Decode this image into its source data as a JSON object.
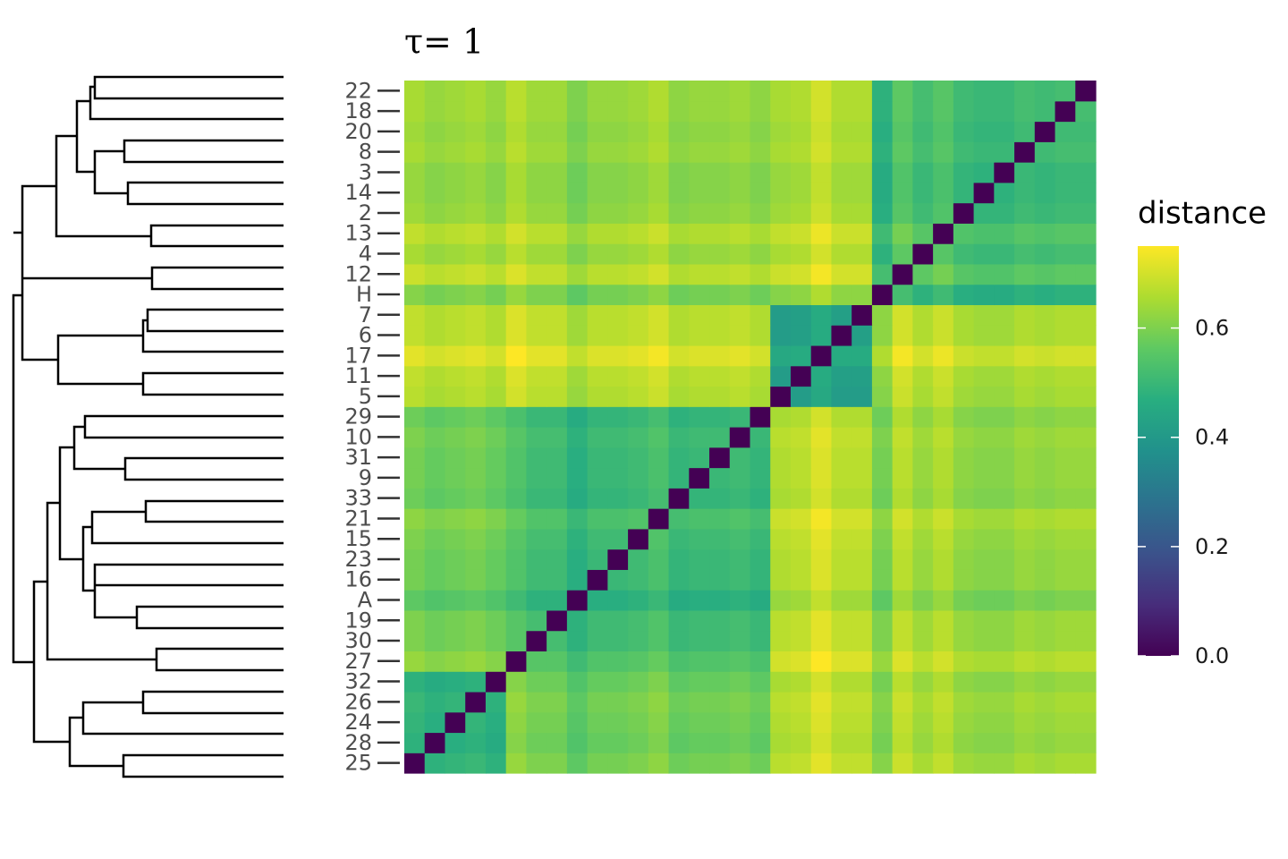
{
  "chart_data": {
    "type": "heatmap",
    "title": "τ= 1",
    "colorbar_title": "distance",
    "colormap": "viridis",
    "zlim": [
      0,
      0.75
    ],
    "zticks": [
      {
        "value": 0,
        "label": "0.0"
      },
      0.2,
      0.4,
      0.6
    ],
    "categories": [
      "25",
      "28",
      "24",
      "26",
      "32",
      "27",
      "30",
      "19",
      "A",
      "16",
      "23",
      "15",
      "21",
      "33",
      "9",
      "31",
      "10",
      "29",
      "5",
      "11",
      "17",
      "6",
      "7",
      "H",
      "12",
      "4",
      "13",
      "2",
      "14",
      "3",
      "8",
      "20",
      "18",
      "22"
    ],
    "values": [
      [
        0,
        0.48,
        0.49,
        0.5,
        0.48,
        0.63,
        0.6,
        0.6,
        0.56,
        0.59,
        0.59,
        0.6,
        0.62,
        0.58,
        0.59,
        0.59,
        0.6,
        0.58,
        0.67,
        0.68,
        0.72,
        0.68,
        0.68,
        0.61,
        0.69,
        0.65,
        0.68,
        0.64,
        0.63,
        0.63,
        0.65,
        0.64,
        0.65,
        0.65
      ],
      [
        0.48,
        0,
        0.47,
        0.48,
        0.46,
        0.61,
        0.58,
        0.58,
        0.54,
        0.57,
        0.57,
        0.58,
        0.6,
        0.56,
        0.57,
        0.57,
        0.58,
        0.56,
        0.65,
        0.66,
        0.7,
        0.66,
        0.66,
        0.59,
        0.67,
        0.63,
        0.66,
        0.62,
        0.61,
        0.61,
        0.63,
        0.62,
        0.63,
        0.63
      ],
      [
        0.49,
        0.47,
        0,
        0.49,
        0.47,
        0.62,
        0.59,
        0.59,
        0.55,
        0.58,
        0.58,
        0.59,
        0.61,
        0.57,
        0.58,
        0.58,
        0.59,
        0.57,
        0.66,
        0.67,
        0.71,
        0.67,
        0.67,
        0.6,
        0.68,
        0.64,
        0.67,
        0.63,
        0.62,
        0.62,
        0.64,
        0.63,
        0.64,
        0.64
      ],
      [
        0.5,
        0.48,
        0.49,
        0,
        0.48,
        0.63,
        0.6,
        0.6,
        0.56,
        0.59,
        0.59,
        0.6,
        0.62,
        0.58,
        0.59,
        0.59,
        0.6,
        0.58,
        0.67,
        0.68,
        0.72,
        0.68,
        0.68,
        0.61,
        0.69,
        0.65,
        0.68,
        0.64,
        0.63,
        0.63,
        0.65,
        0.64,
        0.65,
        0.65
      ],
      [
        0.48,
        0.46,
        0.47,
        0.48,
        0,
        0.61,
        0.58,
        0.58,
        0.54,
        0.57,
        0.57,
        0.58,
        0.6,
        0.56,
        0.57,
        0.57,
        0.58,
        0.56,
        0.65,
        0.66,
        0.7,
        0.66,
        0.66,
        0.59,
        0.67,
        0.63,
        0.66,
        0.62,
        0.61,
        0.61,
        0.63,
        0.62,
        0.63,
        0.63
      ],
      [
        0.63,
        0.61,
        0.62,
        0.63,
        0.61,
        0,
        0.55,
        0.55,
        0.51,
        0.54,
        0.54,
        0.55,
        0.57,
        0.53,
        0.54,
        0.54,
        0.55,
        0.53,
        0.7,
        0.71,
        0.75,
        0.71,
        0.71,
        0.63,
        0.71,
        0.67,
        0.7,
        0.66,
        0.65,
        0.65,
        0.67,
        0.66,
        0.67,
        0.67
      ],
      [
        0.6,
        0.58,
        0.59,
        0.6,
        0.58,
        0.55,
        0,
        0.52,
        0.48,
        0.51,
        0.51,
        0.52,
        0.54,
        0.5,
        0.51,
        0.51,
        0.52,
        0.5,
        0.67,
        0.68,
        0.72,
        0.68,
        0.68,
        0.6,
        0.68,
        0.64,
        0.67,
        0.63,
        0.62,
        0.62,
        0.64,
        0.63,
        0.64,
        0.64
      ],
      [
        0.6,
        0.58,
        0.59,
        0.6,
        0.58,
        0.55,
        0.52,
        0,
        0.48,
        0.51,
        0.51,
        0.52,
        0.54,
        0.5,
        0.51,
        0.51,
        0.52,
        0.5,
        0.67,
        0.68,
        0.72,
        0.68,
        0.68,
        0.6,
        0.68,
        0.64,
        0.67,
        0.63,
        0.62,
        0.62,
        0.64,
        0.63,
        0.64,
        0.64
      ],
      [
        0.56,
        0.54,
        0.55,
        0.56,
        0.54,
        0.51,
        0.48,
        0.48,
        0,
        0.47,
        0.47,
        0.48,
        0.5,
        0.46,
        0.47,
        0.47,
        0.48,
        0.46,
        0.63,
        0.64,
        0.68,
        0.64,
        0.64,
        0.56,
        0.64,
        0.6,
        0.63,
        0.59,
        0.58,
        0.58,
        0.6,
        0.59,
        0.6,
        0.6
      ],
      [
        0.59,
        0.57,
        0.58,
        0.59,
        0.57,
        0.54,
        0.51,
        0.51,
        0.47,
        0,
        0.5,
        0.51,
        0.53,
        0.49,
        0.5,
        0.5,
        0.51,
        0.49,
        0.66,
        0.67,
        0.71,
        0.67,
        0.67,
        0.59,
        0.67,
        0.63,
        0.66,
        0.62,
        0.61,
        0.61,
        0.63,
        0.62,
        0.63,
        0.63
      ],
      [
        0.59,
        0.57,
        0.58,
        0.59,
        0.57,
        0.54,
        0.51,
        0.51,
        0.47,
        0.5,
        0,
        0.51,
        0.53,
        0.49,
        0.5,
        0.5,
        0.51,
        0.49,
        0.66,
        0.67,
        0.71,
        0.67,
        0.67,
        0.59,
        0.67,
        0.63,
        0.66,
        0.62,
        0.61,
        0.61,
        0.63,
        0.62,
        0.63,
        0.63
      ],
      [
        0.6,
        0.58,
        0.59,
        0.6,
        0.58,
        0.55,
        0.52,
        0.52,
        0.48,
        0.51,
        0.51,
        0,
        0.54,
        0.5,
        0.51,
        0.51,
        0.52,
        0.5,
        0.67,
        0.68,
        0.72,
        0.68,
        0.68,
        0.6,
        0.68,
        0.64,
        0.67,
        0.63,
        0.62,
        0.62,
        0.64,
        0.63,
        0.64,
        0.64
      ],
      [
        0.62,
        0.6,
        0.61,
        0.62,
        0.6,
        0.57,
        0.54,
        0.54,
        0.5,
        0.53,
        0.53,
        0.54,
        0,
        0.52,
        0.53,
        0.53,
        0.54,
        0.52,
        0.69,
        0.7,
        0.74,
        0.7,
        0.7,
        0.62,
        0.7,
        0.66,
        0.69,
        0.65,
        0.64,
        0.64,
        0.66,
        0.65,
        0.66,
        0.66
      ],
      [
        0.58,
        0.56,
        0.57,
        0.58,
        0.56,
        0.53,
        0.5,
        0.5,
        0.46,
        0.49,
        0.49,
        0.5,
        0.52,
        0,
        0.49,
        0.49,
        0.5,
        0.48,
        0.65,
        0.66,
        0.7,
        0.66,
        0.66,
        0.58,
        0.66,
        0.62,
        0.65,
        0.61,
        0.6,
        0.6,
        0.62,
        0.61,
        0.62,
        0.62
      ],
      [
        0.59,
        0.57,
        0.58,
        0.59,
        0.57,
        0.54,
        0.51,
        0.51,
        0.47,
        0.5,
        0.5,
        0.51,
        0.53,
        0.49,
        0,
        0.5,
        0.51,
        0.49,
        0.66,
        0.67,
        0.71,
        0.67,
        0.67,
        0.59,
        0.67,
        0.63,
        0.66,
        0.62,
        0.61,
        0.61,
        0.63,
        0.62,
        0.63,
        0.63
      ],
      [
        0.59,
        0.57,
        0.58,
        0.59,
        0.57,
        0.54,
        0.51,
        0.51,
        0.47,
        0.5,
        0.5,
        0.51,
        0.53,
        0.49,
        0.5,
        0,
        0.51,
        0.49,
        0.66,
        0.67,
        0.71,
        0.67,
        0.67,
        0.59,
        0.67,
        0.63,
        0.66,
        0.62,
        0.61,
        0.61,
        0.63,
        0.62,
        0.63,
        0.63
      ],
      [
        0.6,
        0.58,
        0.59,
        0.6,
        0.58,
        0.55,
        0.52,
        0.52,
        0.48,
        0.51,
        0.51,
        0.52,
        0.54,
        0.5,
        0.51,
        0.51,
        0,
        0.5,
        0.67,
        0.68,
        0.72,
        0.68,
        0.68,
        0.6,
        0.68,
        0.64,
        0.67,
        0.63,
        0.62,
        0.62,
        0.64,
        0.63,
        0.64,
        0.64
      ],
      [
        0.58,
        0.56,
        0.57,
        0.58,
        0.56,
        0.53,
        0.5,
        0.5,
        0.46,
        0.49,
        0.49,
        0.5,
        0.52,
        0.48,
        0.49,
        0.49,
        0.5,
        0,
        0.65,
        0.66,
        0.7,
        0.66,
        0.66,
        0.58,
        0.66,
        0.62,
        0.65,
        0.61,
        0.6,
        0.6,
        0.62,
        0.61,
        0.62,
        0.62
      ],
      [
        0.67,
        0.65,
        0.66,
        0.67,
        0.65,
        0.7,
        0.67,
        0.67,
        0.63,
        0.66,
        0.66,
        0.67,
        0.69,
        0.65,
        0.66,
        0.66,
        0.67,
        0.65,
        0,
        0.41,
        0.45,
        0.41,
        0.41,
        0.61,
        0.69,
        0.65,
        0.68,
        0.64,
        0.63,
        0.63,
        0.65,
        0.64,
        0.65,
        0.65
      ],
      [
        0.68,
        0.66,
        0.67,
        0.68,
        0.66,
        0.71,
        0.68,
        0.68,
        0.64,
        0.67,
        0.67,
        0.68,
        0.7,
        0.66,
        0.67,
        0.67,
        0.68,
        0.66,
        0.41,
        0,
        0.46,
        0.42,
        0.42,
        0.62,
        0.7,
        0.66,
        0.69,
        0.65,
        0.64,
        0.64,
        0.66,
        0.65,
        0.66,
        0.66
      ],
      [
        0.72,
        0.7,
        0.71,
        0.72,
        0.7,
        0.75,
        0.72,
        0.72,
        0.68,
        0.71,
        0.71,
        0.72,
        0.74,
        0.7,
        0.71,
        0.71,
        0.72,
        0.7,
        0.45,
        0.46,
        0,
        0.46,
        0.46,
        0.66,
        0.74,
        0.7,
        0.73,
        0.69,
        0.68,
        0.68,
        0.7,
        0.69,
        0.7,
        0.7
      ],
      [
        0.68,
        0.66,
        0.67,
        0.68,
        0.66,
        0.71,
        0.68,
        0.68,
        0.64,
        0.67,
        0.67,
        0.68,
        0.7,
        0.66,
        0.67,
        0.67,
        0.68,
        0.66,
        0.41,
        0.42,
        0.46,
        0,
        0.42,
        0.62,
        0.7,
        0.66,
        0.69,
        0.65,
        0.64,
        0.64,
        0.66,
        0.65,
        0.66,
        0.66
      ],
      [
        0.68,
        0.66,
        0.67,
        0.68,
        0.66,
        0.71,
        0.68,
        0.68,
        0.64,
        0.67,
        0.67,
        0.68,
        0.7,
        0.66,
        0.67,
        0.67,
        0.68,
        0.66,
        0.41,
        0.42,
        0.46,
        0.42,
        0,
        0.62,
        0.7,
        0.66,
        0.69,
        0.65,
        0.64,
        0.64,
        0.66,
        0.65,
        0.66,
        0.66
      ],
      [
        0.61,
        0.59,
        0.6,
        0.61,
        0.59,
        0.63,
        0.6,
        0.6,
        0.56,
        0.59,
        0.59,
        0.6,
        0.62,
        0.58,
        0.59,
        0.59,
        0.6,
        0.58,
        0.61,
        0.62,
        0.66,
        0.62,
        0.62,
        0,
        0.52,
        0.48,
        0.51,
        0.47,
        0.46,
        0.46,
        0.48,
        0.47,
        0.48,
        0.48
      ],
      [
        0.69,
        0.67,
        0.68,
        0.69,
        0.67,
        0.71,
        0.68,
        0.68,
        0.64,
        0.67,
        0.67,
        0.68,
        0.7,
        0.66,
        0.67,
        0.67,
        0.68,
        0.66,
        0.69,
        0.7,
        0.74,
        0.7,
        0.7,
        0.52,
        0,
        0.56,
        0.59,
        0.55,
        0.54,
        0.54,
        0.56,
        0.55,
        0.56,
        0.56
      ],
      [
        0.65,
        0.63,
        0.64,
        0.65,
        0.63,
        0.67,
        0.64,
        0.64,
        0.6,
        0.63,
        0.63,
        0.64,
        0.66,
        0.62,
        0.63,
        0.63,
        0.64,
        0.62,
        0.65,
        0.66,
        0.7,
        0.66,
        0.66,
        0.48,
        0.56,
        0,
        0.55,
        0.51,
        0.5,
        0.5,
        0.52,
        0.51,
        0.52,
        0.52
      ],
      [
        0.68,
        0.66,
        0.67,
        0.68,
        0.66,
        0.7,
        0.67,
        0.67,
        0.63,
        0.66,
        0.66,
        0.67,
        0.69,
        0.65,
        0.66,
        0.66,
        0.67,
        0.65,
        0.68,
        0.69,
        0.73,
        0.69,
        0.69,
        0.51,
        0.59,
        0.55,
        0,
        0.54,
        0.53,
        0.53,
        0.55,
        0.54,
        0.55,
        0.55
      ],
      [
        0.64,
        0.62,
        0.63,
        0.64,
        0.62,
        0.66,
        0.63,
        0.63,
        0.59,
        0.62,
        0.62,
        0.63,
        0.65,
        0.61,
        0.62,
        0.62,
        0.63,
        0.61,
        0.64,
        0.65,
        0.69,
        0.65,
        0.65,
        0.47,
        0.55,
        0.51,
        0.54,
        0,
        0.49,
        0.49,
        0.51,
        0.5,
        0.51,
        0.51
      ],
      [
        0.63,
        0.61,
        0.62,
        0.63,
        0.61,
        0.65,
        0.62,
        0.62,
        0.58,
        0.61,
        0.61,
        0.62,
        0.64,
        0.6,
        0.61,
        0.61,
        0.62,
        0.6,
        0.63,
        0.64,
        0.68,
        0.64,
        0.64,
        0.46,
        0.54,
        0.5,
        0.53,
        0.49,
        0,
        0.48,
        0.5,
        0.49,
        0.5,
        0.5
      ],
      [
        0.63,
        0.61,
        0.62,
        0.63,
        0.61,
        0.65,
        0.62,
        0.62,
        0.58,
        0.61,
        0.61,
        0.62,
        0.64,
        0.6,
        0.61,
        0.61,
        0.62,
        0.6,
        0.63,
        0.64,
        0.68,
        0.64,
        0.64,
        0.46,
        0.54,
        0.5,
        0.53,
        0.49,
        0.48,
        0,
        0.5,
        0.49,
        0.5,
        0.5
      ],
      [
        0.65,
        0.63,
        0.64,
        0.65,
        0.63,
        0.67,
        0.64,
        0.64,
        0.6,
        0.63,
        0.63,
        0.64,
        0.66,
        0.62,
        0.63,
        0.63,
        0.64,
        0.62,
        0.65,
        0.66,
        0.7,
        0.66,
        0.66,
        0.48,
        0.56,
        0.52,
        0.55,
        0.51,
        0.5,
        0.5,
        0,
        0.51,
        0.52,
        0.52
      ],
      [
        0.64,
        0.62,
        0.63,
        0.64,
        0.62,
        0.66,
        0.63,
        0.63,
        0.59,
        0.62,
        0.62,
        0.63,
        0.65,
        0.61,
        0.62,
        0.62,
        0.63,
        0.61,
        0.64,
        0.65,
        0.69,
        0.65,
        0.65,
        0.47,
        0.55,
        0.51,
        0.54,
        0.5,
        0.49,
        0.49,
        0.51,
        0,
        0.51,
        0.51
      ],
      [
        0.65,
        0.63,
        0.64,
        0.65,
        0.63,
        0.67,
        0.64,
        0.64,
        0.6,
        0.63,
        0.63,
        0.64,
        0.66,
        0.62,
        0.63,
        0.63,
        0.64,
        0.62,
        0.65,
        0.66,
        0.7,
        0.66,
        0.66,
        0.48,
        0.56,
        0.52,
        0.55,
        0.51,
        0.5,
        0.5,
        0.52,
        0.51,
        0,
        0.52
      ],
      [
        0.65,
        0.63,
        0.64,
        0.65,
        0.63,
        0.67,
        0.64,
        0.64,
        0.6,
        0.63,
        0.63,
        0.64,
        0.66,
        0.62,
        0.63,
        0.63,
        0.64,
        0.62,
        0.65,
        0.66,
        0.7,
        0.66,
        0.66,
        0.48,
        0.56,
        0.52,
        0.55,
        0.51,
        0.5,
        0.5,
        0.52,
        0.51,
        0.52,
        0
      ]
    ]
  }
}
